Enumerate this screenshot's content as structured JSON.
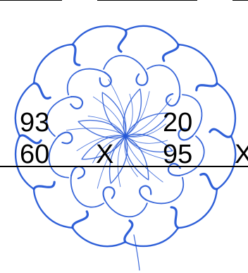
{
  "colors": {
    "ornament": "#2457d6",
    "text": "#000000",
    "background": "#ffffff"
  },
  "fractions": [
    {
      "numerator": "93",
      "denominator": "60",
      "operator": "X"
    },
    {
      "numerator": "20",
      "denominator": "95",
      "operator": "X"
    }
  ],
  "ornament_icon": "swirl-rosette-icon"
}
